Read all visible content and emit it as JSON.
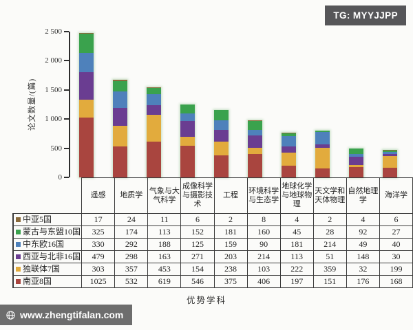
{
  "badge": {
    "text": "TG: MYYJJPP"
  },
  "watermark": {
    "text": "www.zhengtifalan.com",
    "icon": "globe"
  },
  "chart_data": {
    "type": "bar",
    "stacked": true,
    "title": "",
    "xlabel": "优势学科",
    "ylabel": "论文数量/(篇)",
    "ylim": [
      0,
      2500
    ],
    "grid": false,
    "legend_position": "table-left",
    "ytick_values": [
      0,
      500,
      1000,
      1500,
      2000,
      2500
    ],
    "ytick_labels": [
      "0",
      "500",
      "1 000",
      "1 500",
      "2 000",
      "2 500"
    ],
    "categories": [
      "遥感",
      "地质学",
      "气象与大气科学",
      "成像科学与摄影技术",
      "工程",
      "环境科学与生态学",
      "地球化学与地球物理",
      "天文学和天体物理",
      "自然地理学",
      "海洋学"
    ],
    "stack_order_bottom_to_top": [
      "南亚8国",
      "独联体7国",
      "西亚与北非16国",
      "中东欧16国",
      "蒙古与东盟10国",
      "中亚5国"
    ],
    "series": [
      {
        "name": "中亚5国",
        "color": "#8a6a3b",
        "values": [
          17,
          24,
          11,
          6,
          2,
          8,
          4,
          2,
          4,
          6
        ]
      },
      {
        "name": "蒙古与东盟10国",
        "color": "#3aa24d",
        "values": [
          325,
          174,
          113,
          152,
          181,
          160,
          45,
          28,
          92,
          27
        ]
      },
      {
        "name": "中东欧16国",
        "color": "#4e81bb",
        "values": [
          330,
          292,
          188,
          125,
          159,
          90,
          181,
          214,
          49,
          40
        ]
      },
      {
        "name": "西亚与北非16国",
        "color": "#6a3d91",
        "values": [
          479,
          298,
          163,
          271,
          203,
          214,
          113,
          51,
          148,
          30
        ]
      },
      {
        "name": "独联体7国",
        "color": "#e2ab3d",
        "values": [
          303,
          357,
          453,
          154,
          238,
          103,
          222,
          359,
          32,
          199
        ]
      },
      {
        "name": "南亚8国",
        "color": "#a9453f",
        "values": [
          1025,
          532,
          619,
          546,
          375,
          406,
          197,
          151,
          176,
          168
        ]
      }
    ]
  },
  "layout_colors": {
    "badge_bg": "#565659",
    "watermark_bg": "#6d6d6d",
    "axis": "#2d2d2d",
    "table_border": "#3a3a3a"
  }
}
